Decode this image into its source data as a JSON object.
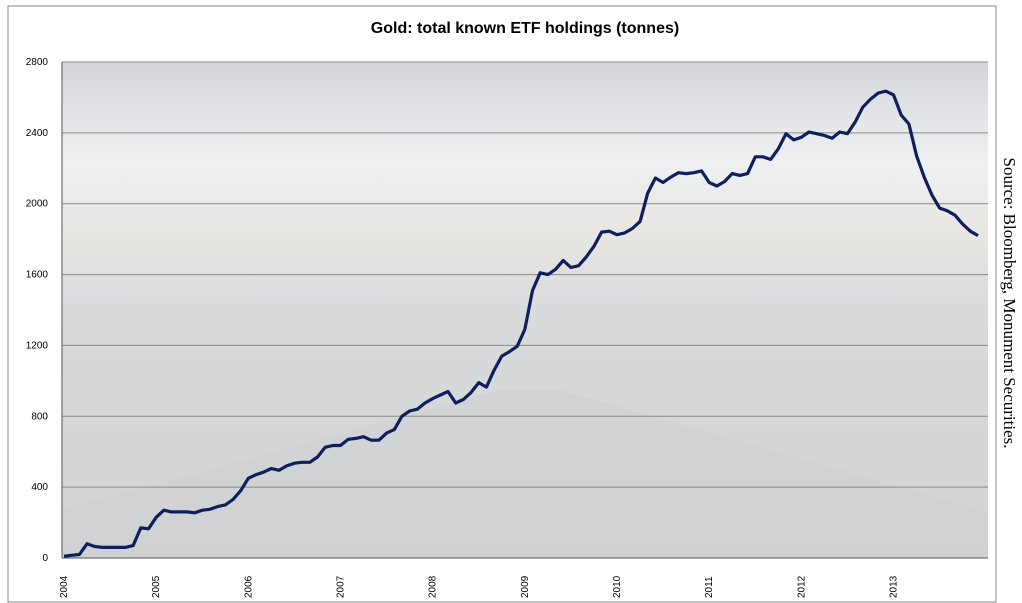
{
  "chart_data": {
    "type": "line",
    "title": "Gold: total known ETF holdings (tonnes)",
    "source": "Source: Bloomberg, Monument Securities.",
    "categories": [
      "2004",
      null,
      null,
      null,
      null,
      null,
      null,
      null,
      null,
      null,
      null,
      null,
      "2005",
      null,
      null,
      null,
      null,
      null,
      null,
      null,
      null,
      null,
      null,
      null,
      "2006",
      null,
      null,
      null,
      null,
      null,
      null,
      null,
      null,
      null,
      null,
      null,
      "2007",
      null,
      null,
      null,
      null,
      null,
      null,
      null,
      null,
      null,
      null,
      null,
      "2008",
      null,
      null,
      null,
      null,
      null,
      null,
      null,
      null,
      null,
      null,
      null,
      "2009",
      null,
      null,
      null,
      null,
      null,
      null,
      null,
      null,
      null,
      null,
      null,
      "2010",
      null,
      null,
      null,
      null,
      null,
      null,
      null,
      null,
      null,
      null,
      null,
      "2011",
      null,
      null,
      null,
      null,
      null,
      null,
      null,
      null,
      null,
      null,
      null,
      "2012",
      null,
      null,
      null,
      null,
      null,
      null,
      null,
      null,
      null,
      null,
      null,
      "2013",
      null,
      null,
      null,
      null,
      null,
      null,
      null,
      null,
      null,
      null,
      null
    ],
    "series": [
      {
        "color": "#0d1f5c",
        "values": [
          10,
          15,
          20,
          80,
          65,
          60,
          60,
          60,
          60,
          70,
          170,
          165,
          230,
          270,
          260,
          260,
          260,
          255,
          270,
          275,
          290,
          300,
          330,
          380,
          450,
          470,
          485,
          505,
          495,
          520,
          535,
          540,
          540,
          570,
          625,
          635,
          635,
          670,
          675,
          685,
          665,
          665,
          705,
          725,
          800,
          830,
          840,
          875,
          900,
          920,
          940,
          875,
          895,
          935,
          990,
          965,
          1060,
          1140,
          1165,
          1195,
          1290,
          1510,
          1610,
          1600,
          1630,
          1680,
          1640,
          1650,
          1700,
          1760,
          1840,
          1845,
          1825,
          1835,
          1860,
          1900,
          2060,
          2145,
          2120,
          2150,
          2175,
          2170,
          2175,
          2185,
          2120,
          2100,
          2125,
          2170,
          2160,
          2170,
          2265,
          2265,
          2250,
          2310,
          2395,
          2360,
          2375,
          2405,
          2395,
          2385,
          2370,
          2405,
          2395,
          2460,
          2545,
          2590,
          2625,
          2635,
          2615,
          2500,
          2450,
          2270,
          2150,
          2050,
          1975,
          1960,
          1935,
          1885,
          1845,
          1820
        ]
      }
    ],
    "ylim": [
      0,
      2800
    ],
    "yticks": [
      0,
      400,
      800,
      1200,
      1600,
      2000,
      2400,
      2800
    ],
    "grid": true
  }
}
